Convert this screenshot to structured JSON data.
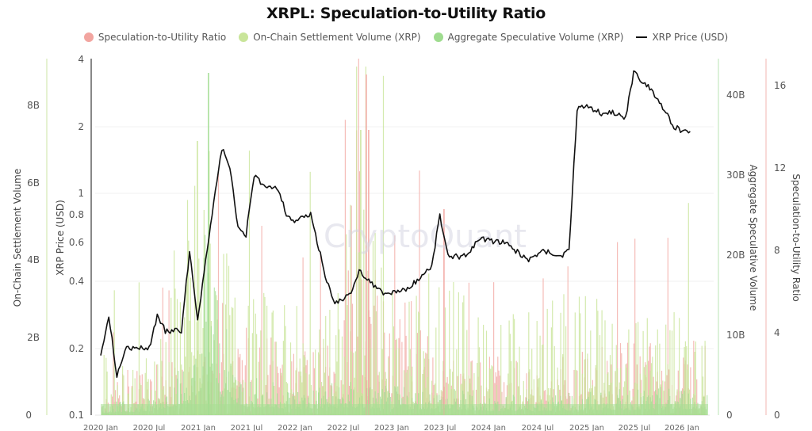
{
  "chart_data": {
    "type": "line",
    "title": "XRPL: Speculation-to-Utility Ratio",
    "watermark": "CryptoQuant",
    "legend": [
      {
        "label": "Speculation-to-Utility Ratio",
        "color": "#f2a5a0",
        "marker": "circle"
      },
      {
        "label": "On-Chain Settlement Volume (XRP)",
        "color": "#c9e59a",
        "marker": "circle"
      },
      {
        "label": "Aggregate Speculative Volume (XRP)",
        "color": "#9fdc8f",
        "marker": "circle"
      },
      {
        "label": "XRP Price (USD)",
        "color": "#111111",
        "marker": "line"
      }
    ],
    "legend_position": "top",
    "grid": true,
    "x": [
      "2020 Jan",
      "2020 Jul",
      "2021 Jan",
      "2021 Jul",
      "2022 Jan",
      "2022 Jul",
      "2023 Jan",
      "2023 Jul",
      "2024 Jan",
      "2024 Jul",
      "2025 Jan",
      "2025 Jul",
      "2026 Jan"
    ],
    "axes": {
      "left_outer": {
        "label": "On-Chain Settlement Volume",
        "ticks": [
          "0",
          "2B",
          "4B",
          "6B",
          "8B"
        ],
        "range": [
          0,
          9200000000
        ],
        "color": "#c9e59a"
      },
      "left_inner": {
        "label": "XRP Price (USD)",
        "scale": "log",
        "ticks": [
          "0.1",
          "0.2",
          "0.4",
          "0.6",
          "0.8",
          "1",
          "2",
          "4"
        ],
        "range": [
          0.1,
          4
        ],
        "color": "#333333"
      },
      "right_inner": {
        "label": "Aggregate Speculative Volume",
        "ticks": [
          "0",
          "10B",
          "20B",
          "30B",
          "40B"
        ],
        "range": [
          0,
          44600000000
        ],
        "color": "#9fdc8f"
      },
      "right_outer": {
        "label": "Speculation-to-Utility Ratio",
        "ticks": [
          "0",
          "4",
          "8",
          "12",
          "16"
        ],
        "range": [
          0,
          17.3
        ],
        "color": "#f2a5a0"
      }
    },
    "series": [
      {
        "name": "XRP Price (USD)",
        "axis": "left_inner",
        "x": [
          "2020 Jan",
          "2020 Feb",
          "2020 Mar",
          "2020 Apr",
          "2020 May",
          "2020 Jul",
          "2020 Aug",
          "2020 Sep",
          "2020 Nov",
          "2020 Dec",
          "2021 Jan",
          "2021 Feb",
          "2021 Apr",
          "2021 May",
          "2021 Jun",
          "2021 Jul",
          "2021 Aug",
          "2021 Sep",
          "2021 Nov",
          "2021 Dec",
          "2022 Jan",
          "2022 Mar",
          "2022 May",
          "2022 Jun",
          "2022 Aug",
          "2022 Sep",
          "2022 Nov",
          "2022 Dec",
          "2023 Mar",
          "2023 Jun",
          "2023 Jul",
          "2023 Aug",
          "2023 Oct",
          "2023 Dec",
          "2024 Mar",
          "2024 Jun",
          "2024 Aug",
          "2024 Oct",
          "2024 Nov",
          "2024 Dec",
          "2025 Jan",
          "2025 Mar",
          "2025 May",
          "2025 Jun",
          "2025 Jul",
          "2025 Sep",
          "2025 Nov",
          "2025 Dec",
          "2026 Jan",
          "2026 Feb"
        ],
        "values": [
          0.19,
          0.28,
          0.15,
          0.2,
          0.2,
          0.2,
          0.28,
          0.24,
          0.24,
          0.55,
          0.27,
          0.5,
          1.6,
          1.3,
          0.7,
          0.65,
          1.2,
          1.1,
          1.05,
          0.8,
          0.75,
          0.8,
          0.4,
          0.32,
          0.35,
          0.45,
          0.38,
          0.35,
          0.37,
          0.47,
          0.8,
          0.52,
          0.52,
          0.62,
          0.6,
          0.5,
          0.55,
          0.52,
          0.55,
          2.4,
          2.5,
          2.3,
          2.3,
          2.2,
          3.5,
          3.0,
          2.3,
          2.0,
          1.9,
          1.9
        ]
      },
      {
        "name": "Aggregate Speculative Volume (XRP)",
        "axis": "right_inner",
        "note": "dense daily bars; representative monthly envelope",
        "x": [
          "2020 Jan",
          "2020 Jul",
          "2021 Jan",
          "2021 Feb",
          "2021 Apr",
          "2021 Jul",
          "2022 Jan",
          "2022 Jul",
          "2023 Jan",
          "2023 Jul",
          "2024 Jan",
          "2024 Jul",
          "2025 Jan",
          "2025 Jul",
          "2026 Jan"
        ],
        "values": [
          2000000000,
          3000000000,
          12000000000,
          42000000000,
          16000000000,
          7000000000,
          5000000000,
          6000000000,
          5000000000,
          5000000000,
          3500000000,
          3500000000,
          4000000000,
          4500000000,
          5000000000
        ]
      },
      {
        "name": "On-Chain Settlement Volume (XRP)",
        "axis": "left_outer",
        "note": "dense daily bars; representative monthly envelope",
        "x": [
          "2020 Jan",
          "2020 Jul",
          "2021 Jan",
          "2021 Feb",
          "2021 Apr",
          "2021 Jul",
          "2022 Jan",
          "2022 Jul",
          "2022 Aug",
          "2023 Jan",
          "2023 Jul",
          "2024 Jan",
          "2024 Jul",
          "2025 Jan",
          "2025 Jul",
          "2026 Jan"
        ],
        "values": [
          1600000000,
          1800000000,
          7000000000,
          8400000000,
          4500000000,
          3500000000,
          3000000000,
          3500000000,
          7700000000,
          3500000000,
          4000000000,
          2500000000,
          3000000000,
          3500000000,
          3000000000,
          2800000000
        ]
      },
      {
        "name": "Speculation-to-Utility Ratio",
        "axis": "right_outer",
        "note": "dense daily bars; representative monthly envelope",
        "x": [
          "2020 Jan",
          "2020 Jul",
          "2021 Jan",
          "2021 Apr",
          "2021 Jul",
          "2022 Jan",
          "2022 Jul",
          "2022 Aug",
          "2023 Jan",
          "2023 Mar",
          "2023 Jul",
          "2024 Jan",
          "2024 Jul",
          "2025 Jan",
          "2025 Jul",
          "2026 Jan"
        ],
        "values": [
          1.5,
          3,
          2.5,
          6,
          4.5,
          3.5,
          4,
          16.5,
          3.5,
          7,
          3,
          3,
          3,
          3.5,
          4,
          4
        ]
      }
    ]
  }
}
